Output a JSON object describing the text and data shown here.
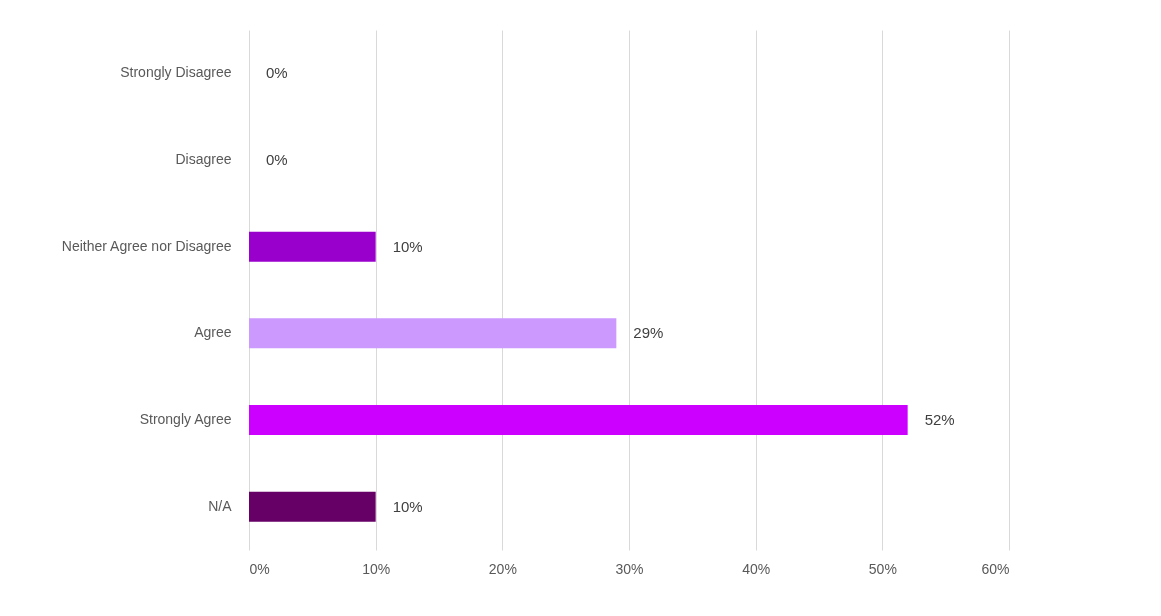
{
  "chart_data": {
    "type": "bar",
    "orientation": "horizontal",
    "categories": [
      "Strongly Disagree",
      "Disagree",
      "Neither Agree nor Disagree",
      "Agree",
      "Strongly Agree",
      "N/A"
    ],
    "values": [
      0,
      0,
      10,
      29,
      52,
      10
    ],
    "colors": [
      "#cc00ff",
      "#9900cc",
      "#9900cc",
      "#cc99ff",
      "#cc00ff",
      "#660066"
    ],
    "value_labels": [
      "0%",
      "0%",
      "10%",
      "29%",
      "52%",
      "10%"
    ],
    "xlim": [
      0,
      60
    ],
    "xticks": [
      {
        "value": 0,
        "label": "0%"
      },
      {
        "value": 10,
        "label": "10%"
      },
      {
        "value": 20,
        "label": "20%"
      },
      {
        "value": 30,
        "label": "30%"
      },
      {
        "value": 40,
        "label": "40%"
      },
      {
        "value": 50,
        "label": "50%"
      },
      {
        "value": 60,
        "label": "60%"
      }
    ],
    "grid": "x"
  }
}
